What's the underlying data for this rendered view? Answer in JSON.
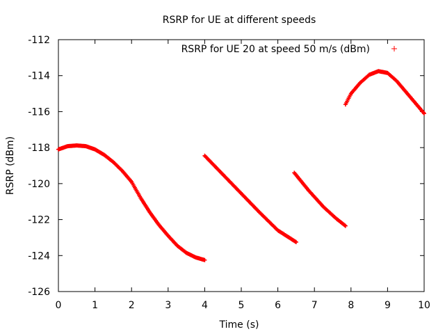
{
  "chart_data": {
    "type": "scatter",
    "title": "RSRP for UE at different speeds",
    "xlabel": "Time (s)",
    "ylabel": "RSRP (dBm)",
    "xlim": [
      0,
      10
    ],
    "ylim": [
      -126,
      -112
    ],
    "xticks": [
      0,
      1,
      2,
      3,
      4,
      5,
      6,
      7,
      8,
      9,
      10
    ],
    "yticks": [
      -126,
      -124,
      -122,
      -120,
      -118,
      -116,
      -114,
      -112
    ],
    "grid": false,
    "legend_position": "top-right",
    "color": "#ff0000",
    "series": [
      {
        "name": "RSRP for UE 20 at speed 50 m/s (dBm)",
        "marker": "+",
        "segments": [
          {
            "x": [
              0,
              0.25,
              0.5,
              0.75,
              1.0,
              1.25,
              1.5,
              1.75,
              2.0,
              2.25,
              2.5,
              2.75,
              3.0,
              3.25,
              3.5,
              3.75,
              4.0
            ],
            "y": [
              -118.1,
              -117.92,
              -117.88,
              -117.92,
              -118.1,
              -118.4,
              -118.8,
              -119.3,
              -119.9,
              -120.8,
              -121.6,
              -122.3,
              -122.9,
              -123.45,
              -123.85,
              -124.1,
              -124.25
            ]
          },
          {
            "x": [
              4.0,
              4.5,
              5.0,
              5.5,
              6.0,
              6.5
            ],
            "y": [
              -118.45,
              -119.5,
              -120.55,
              -121.6,
              -122.6,
              -123.25
            ]
          },
          {
            "x": [
              6.45,
              6.85,
              7.25,
              7.6,
              7.85
            ],
            "y": [
              -119.4,
              -120.4,
              -121.3,
              -121.95,
              -122.35
            ]
          },
          {
            "x": [
              7.85,
              8.0,
              8.25,
              8.5,
              8.75,
              9.0,
              9.25,
              9.5,
              9.75,
              10.0
            ],
            "y": [
              -115.6,
              -115.0,
              -114.4,
              -113.95,
              -113.75,
              -113.85,
              -114.3,
              -114.9,
              -115.5,
              -116.1
            ]
          }
        ]
      }
    ]
  }
}
